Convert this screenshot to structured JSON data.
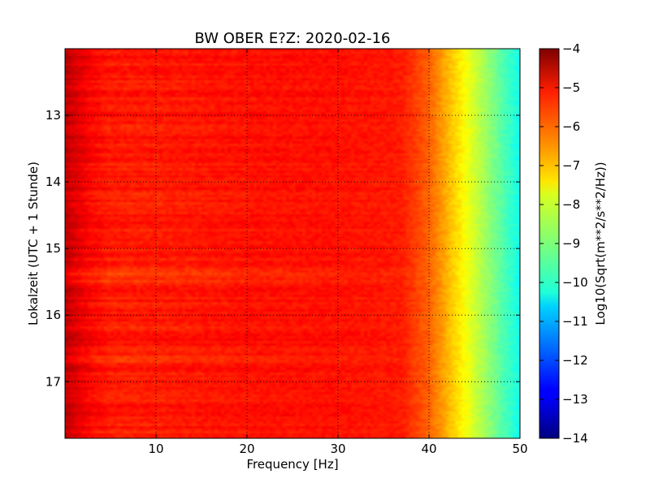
{
  "chart_data": {
    "type": "heatmap",
    "title": "BW OBER E?Z: 2020-02-16",
    "xlabel": "Frequency [Hz]",
    "ylabel": "Lokalzeit (UTC + 1 Stunde)",
    "xlim": [
      0,
      50
    ],
    "ylim_top_to_bottom": [
      12.0,
      17.85
    ],
    "x_ticks": [
      10,
      20,
      30,
      40,
      50
    ],
    "y_ticks": [
      13,
      14,
      15,
      16,
      17
    ],
    "grid": true,
    "colorbar": {
      "label": "Log10(Sqrt(m**2/s**2/Hz))",
      "range": [
        -14,
        -4
      ],
      "ticks": [
        -4,
        -5,
        -6,
        -7,
        -8,
        -9,
        -10,
        -11,
        -12,
        -13,
        -14
      ],
      "tick_labels": [
        "−4",
        "−5",
        "−6",
        "−7",
        "−8",
        "−9",
        "−10",
        "−11",
        "−12",
        "−13",
        "−14"
      ]
    },
    "spectrum_profile": {
      "frequency_hz": [
        0,
        1,
        3,
        5,
        10,
        20,
        30,
        37,
        40,
        42,
        44,
        46,
        48,
        50
      ],
      "log10_level": [
        -4.6,
        -4.9,
        -5.3,
        -5.5,
        -5.5,
        -5.4,
        -5.4,
        -5.5,
        -6.2,
        -7.0,
        -7.8,
        -8.6,
        -9.4,
        -10.1
      ]
    },
    "strong_band_hours": [
      15.35,
      15.45,
      16.65
    ]
  }
}
